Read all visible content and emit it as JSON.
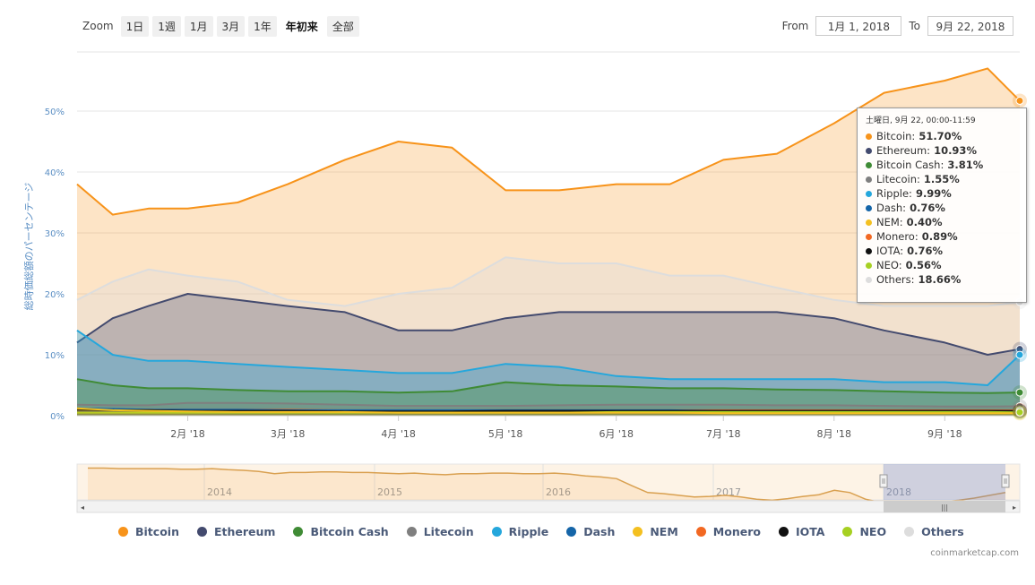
{
  "zoom": {
    "label": "Zoom",
    "buttons": [
      "1日",
      "1週",
      "1月",
      "3月",
      "1年",
      "年初来",
      "全部"
    ],
    "active": "年初来"
  },
  "range": {
    "from_label": "From",
    "from_value": "1月 1, 2018",
    "to_label": "To",
    "to_value": "9月 22, 2018"
  },
  "tooltip": {
    "header": "土曜日, 9月 22, 00:00-11:59",
    "rows": [
      {
        "name": "Bitcoin",
        "value": "51.70%"
      },
      {
        "name": "Ethereum",
        "value": "10.93%"
      },
      {
        "name": "Bitcoin Cash",
        "value": "3.81%"
      },
      {
        "name": "Litecoin",
        "value": "1.55%"
      },
      {
        "name": "Ripple",
        "value": "9.99%"
      },
      {
        "name": "Dash",
        "value": "0.76%"
      },
      {
        "name": "NEM",
        "value": "0.40%"
      },
      {
        "name": "Monero",
        "value": "0.89%"
      },
      {
        "name": "IOTA",
        "value": "0.76%"
      },
      {
        "name": "NEO",
        "value": "0.56%"
      },
      {
        "name": "Others",
        "value": "18.66%"
      }
    ]
  },
  "credit": "coinmarketcap.com",
  "chart_data": {
    "type": "line",
    "title": "",
    "ylabel": "総時価総額のパーセンテージ",
    "ylim": [
      0,
      58
    ],
    "y_ticks": [
      "0%",
      "10%",
      "20%",
      "30%",
      "40%",
      "50%"
    ],
    "x_ticks": [
      "2月 '18",
      "3月 '18",
      "4月 '18",
      "5月 '18",
      "6月 '18",
      "7月 '18",
      "8月 '18",
      "9月 '18"
    ],
    "x_tick_days": [
      31,
      59,
      90,
      120,
      151,
      181,
      212,
      243
    ],
    "x_range_days": [
      0,
      264
    ],
    "navigator_labels": [
      "2014",
      "2015",
      "2016",
      "2017",
      "2018"
    ],
    "grid": true,
    "legend_position": "bottom",
    "colors": {
      "Bitcoin": "#f7931a",
      "Ethereum": "#434a6e",
      "Bitcoin Cash": "#3f8b35",
      "Litecoin": "#7f7f7f",
      "Ripple": "#25a7dc",
      "Dash": "#1565a8",
      "NEM": "#f4c020",
      "Monero": "#f26822",
      "IOTA": "#111111",
      "NEO": "#a6d022",
      "Others": "#dddddd"
    },
    "x_days": [
      0,
      10,
      20,
      31,
      45,
      59,
      75,
      90,
      105,
      120,
      135,
      151,
      166,
      181,
      196,
      212,
      226,
      243,
      255,
      264
    ],
    "series": [
      {
        "name": "Bitcoin",
        "values": [
          38,
          33,
          34,
          34,
          35,
          38,
          42,
          45,
          44,
          37,
          37,
          38,
          38,
          42,
          43,
          48,
          53,
          55,
          57,
          51.7
        ]
      },
      {
        "name": "Ethereum",
        "values": [
          12,
          16,
          18,
          20,
          19,
          18,
          17,
          14,
          14,
          16,
          17,
          17,
          17,
          17,
          17,
          16,
          14,
          12,
          10,
          10.93
        ]
      },
      {
        "name": "Bitcoin Cash",
        "values": [
          6,
          5,
          4.5,
          4.5,
          4.2,
          4,
          4,
          3.8,
          4,
          5.5,
          5,
          4.8,
          4.5,
          4.5,
          4.3,
          4.2,
          4,
          3.8,
          3.7,
          3.81
        ]
      },
      {
        "name": "Litecoin",
        "values": [
          1.8,
          1.7,
          1.7,
          2.1,
          2.1,
          2.0,
          1.8,
          1.6,
          1.6,
          1.6,
          1.7,
          1.8,
          1.8,
          1.8,
          1.7,
          1.7,
          1.6,
          1.5,
          1.5,
          1.55
        ]
      },
      {
        "name": "Ripple",
        "values": [
          14,
          10,
          9,
          9,
          8.5,
          8,
          7.5,
          7,
          7,
          8.5,
          8,
          6.5,
          6,
          6,
          6,
          6,
          5.5,
          5.5,
          5,
          9.99
        ]
      },
      {
        "name": "Dash",
        "values": [
          1.2,
          1.1,
          1.0,
          1.0,
          1.0,
          0.9,
          0.9,
          0.9,
          0.9,
          0.9,
          0.9,
          0.9,
          0.9,
          0.8,
          0.8,
          0.8,
          0.8,
          0.8,
          0.8,
          0.76
        ]
      },
      {
        "name": "NEM",
        "values": [
          1.2,
          0.9,
          0.8,
          0.7,
          0.6,
          0.6,
          0.6,
          0.5,
          0.5,
          0.5,
          0.5,
          0.5,
          0.5,
          0.4,
          0.4,
          0.4,
          0.4,
          0.4,
          0.4,
          0.4
        ]
      },
      {
        "name": "Monero",
        "values": [
          1.0,
          1.0,
          1.0,
          1.0,
          1.0,
          1.0,
          0.9,
          0.9,
          0.9,
          0.9,
          0.9,
          0.9,
          0.9,
          0.9,
          0.9,
          0.9,
          0.9,
          0.9,
          0.9,
          0.89
        ]
      },
      {
        "name": "IOTA",
        "values": [
          1.0,
          0.9,
          0.9,
          0.8,
          0.8,
          0.8,
          0.7,
          0.7,
          0.7,
          0.8,
          0.8,
          0.8,
          0.8,
          0.8,
          0.8,
          0.8,
          0.8,
          0.8,
          0.8,
          0.76
        ]
      },
      {
        "name": "NEO",
        "values": [
          0.5,
          0.5,
          0.5,
          0.5,
          0.5,
          0.5,
          0.5,
          0.5,
          0.5,
          0.5,
          0.5,
          0.6,
          0.6,
          0.6,
          0.6,
          0.6,
          0.6,
          0.6,
          0.6,
          0.56
        ]
      },
      {
        "name": "Others",
        "values": [
          19,
          22,
          24,
          23,
          22,
          19,
          18,
          20,
          21,
          26,
          25,
          25,
          23,
          23,
          21,
          19,
          18,
          18,
          18,
          18.66
        ]
      }
    ]
  }
}
